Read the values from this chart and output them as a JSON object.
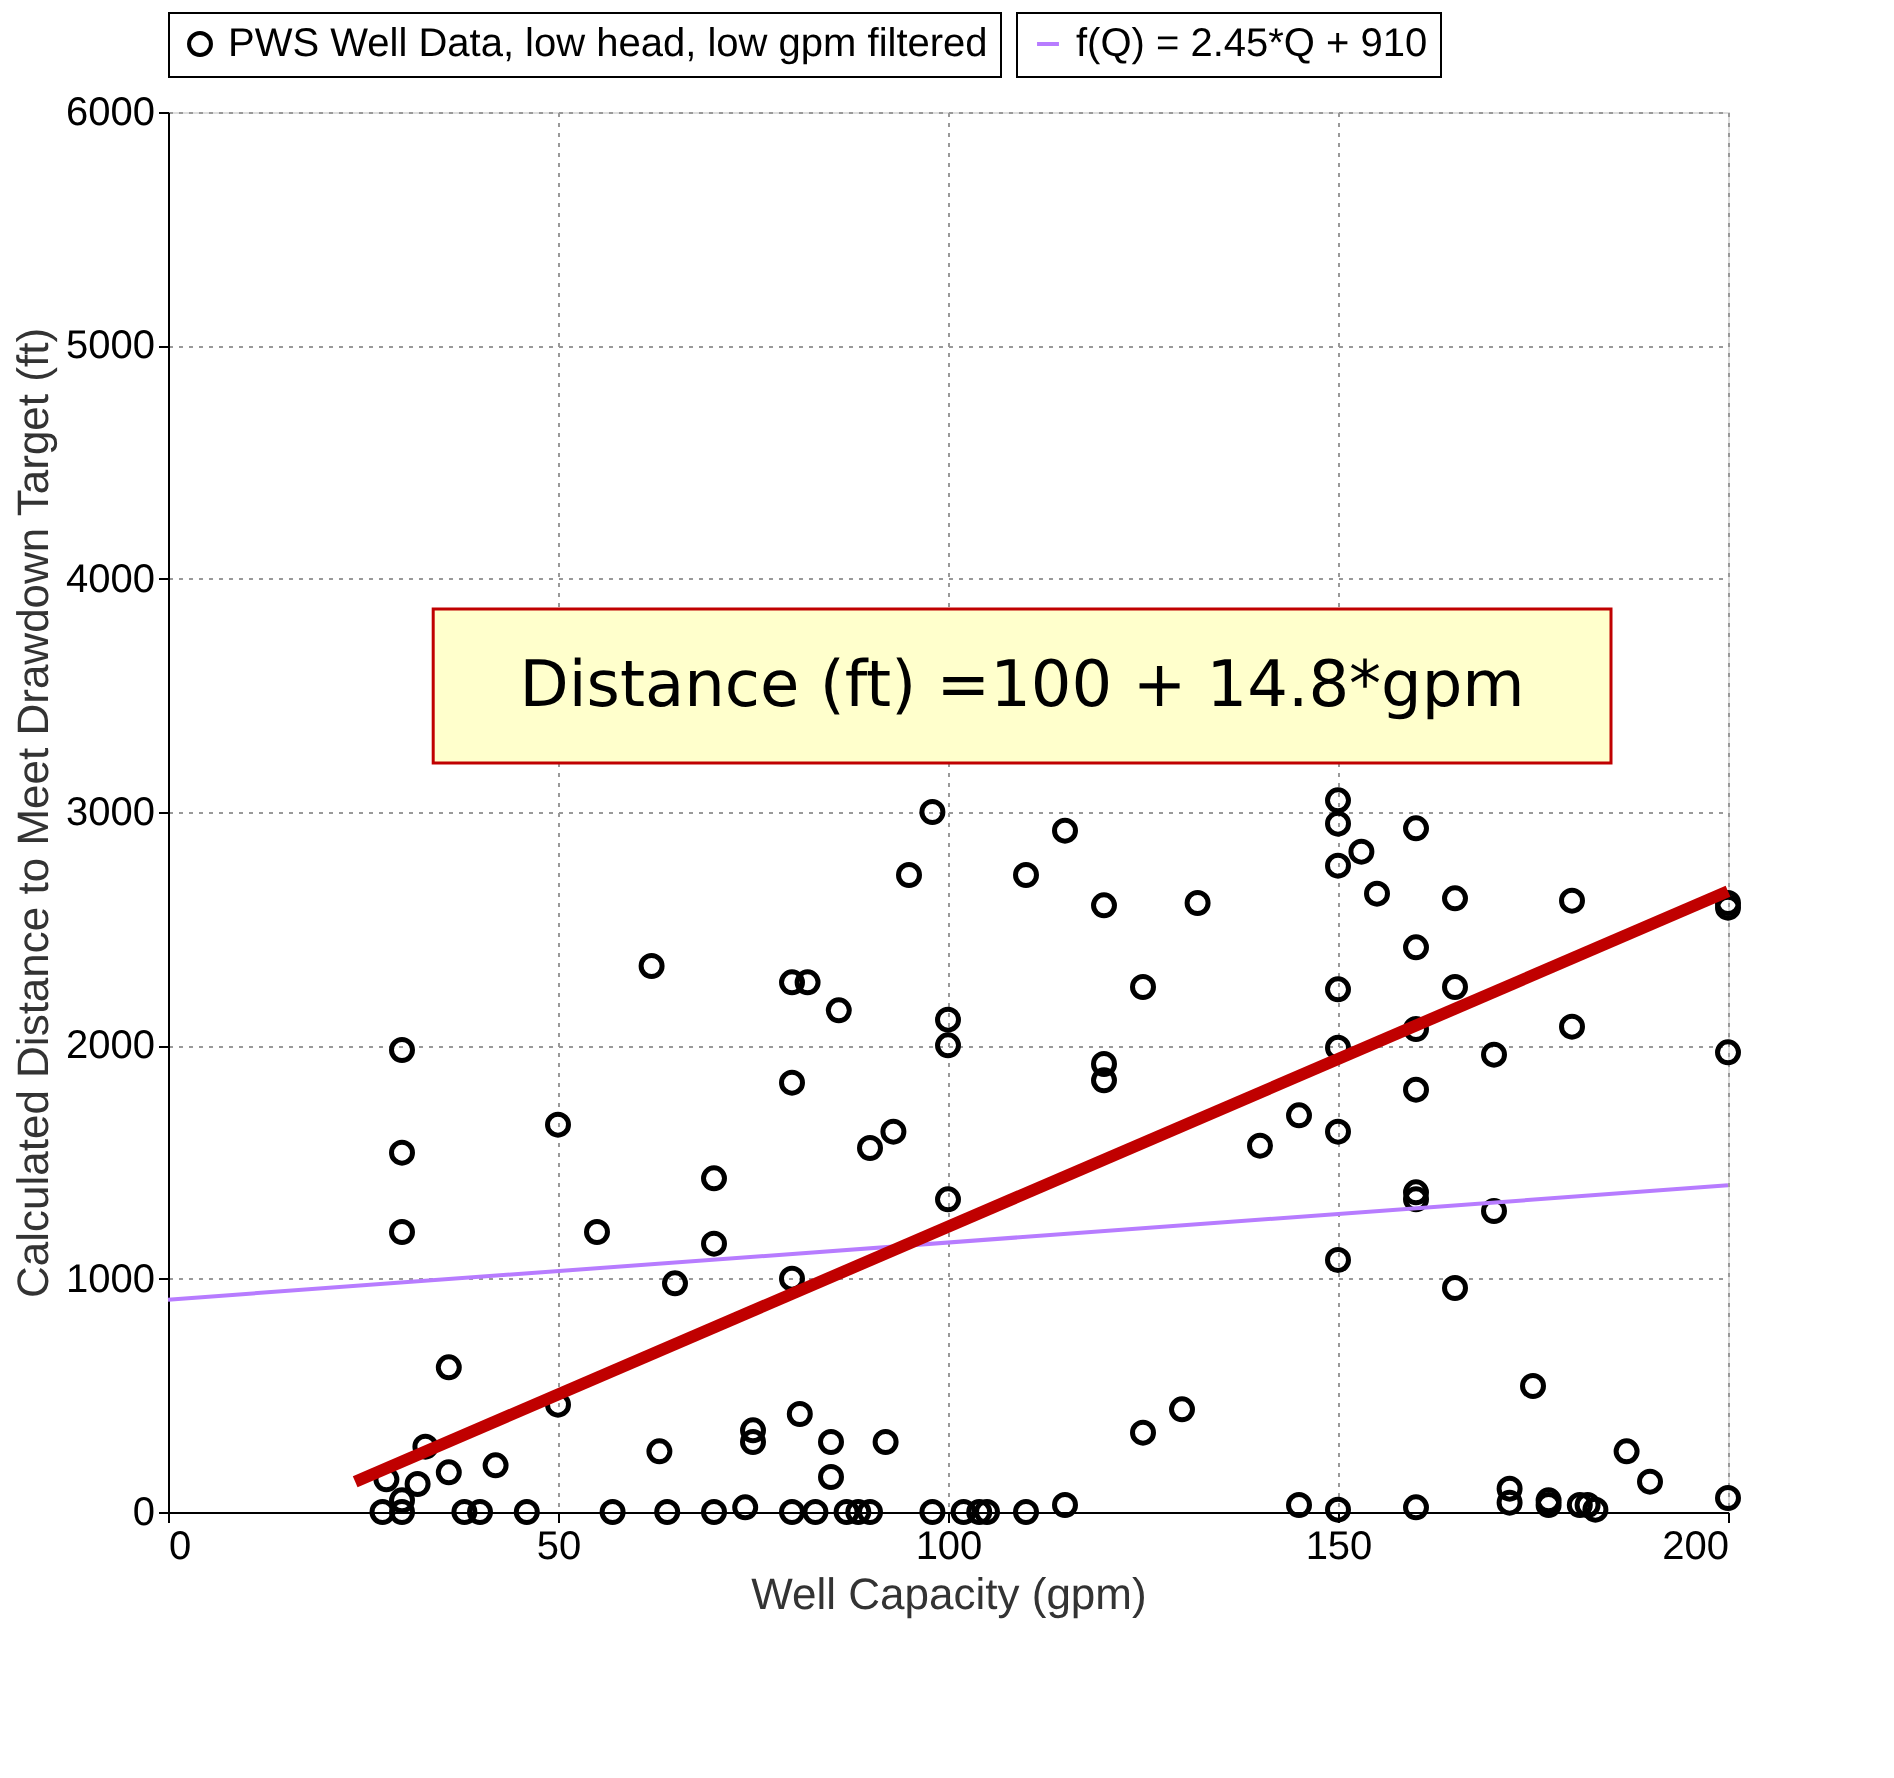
{
  "chart_data": {
    "type": "scatter",
    "xlabel": "Well Capacity (gpm)",
    "ylabel": "Calculated Distance to Meet Drawdown Target (ft)",
    "annotations": [
      "Distance (ft) =100 + 14.8*gpm"
    ],
    "xlim": [
      0,
      200
    ],
    "xticks": [
      0,
      50,
      100,
      150,
      200
    ],
    "ylim": [
      0,
      6000
    ],
    "yticks": [
      0,
      1000,
      2000,
      3000,
      4000,
      5000,
      6000
    ],
    "grid": true,
    "legend": "top",
    "series": [
      {
        "name": "PWS Well Data, low head, low gpm filtered",
        "color": "#000000",
        "marker": "circle",
        "x": [
          98,
          95,
          110,
          62,
          80,
          82,
          86,
          100,
          100,
          30,
          80,
          50,
          93,
          90,
          30,
          70,
          100,
          30,
          55,
          70,
          65,
          80,
          36,
          50,
          81,
          75,
          75,
          85,
          92,
          85,
          63,
          33,
          42,
          36,
          32,
          28,
          30,
          27.5,
          30,
          38,
          40,
          46,
          57,
          64,
          70,
          80,
          83,
          87,
          88.5,
          90,
          98,
          102,
          104,
          105,
          110,
          74,
          150,
          150,
          150,
          115,
          160,
          153,
          155,
          120,
          132,
          165,
          180,
          200,
          200,
          160,
          125,
          150,
          165,
          160,
          180,
          150,
          200,
          120,
          120,
          170,
          160,
          145,
          140,
          150,
          160,
          160,
          170,
          150,
          165,
          175,
          130,
          125,
          187,
          190,
          200,
          172,
          172,
          177,
          177,
          181,
          182,
          183,
          115,
          145,
          150,
          160
        ],
        "values": [
          3000,
          2730,
          2730,
          2340,
          2270,
          2270,
          2150,
          2110,
          2000,
          1980,
          1840,
          1660,
          1630,
          1560,
          1540,
          1430,
          1340,
          1200,
          1200,
          1150,
          980,
          1000,
          620,
          460,
          420,
          350,
          300,
          300,
          300,
          150,
          260,
          280,
          200,
          170,
          120,
          140,
          50,
          0,
          0,
          0,
          0,
          0,
          0,
          0,
          0,
          0,
          0,
          0,
          0,
          0,
          0,
          0,
          0,
          0,
          0,
          20,
          3050,
          2950,
          2770,
          2920,
          2930,
          2830,
          2650,
          2600,
          2610,
          2630,
          2620,
          2610,
          2590,
          2420,
          2250,
          2240,
          2250,
          2070,
          2080,
          1990,
          1970,
          1920,
          1850,
          1960,
          1810,
          1700,
          1570,
          1630,
          1370,
          1340,
          1290,
          1080,
          960,
          540,
          440,
          340,
          260,
          130,
          60,
          100,
          40,
          50,
          30,
          30,
          30,
          10,
          30,
          30,
          10,
          20
        ]
      },
      {
        "type": "line",
        "name": "f(Q) = 2.45*Q + 910",
        "color": "#b77cff",
        "line_style": "solid",
        "x": [
          0,
          200
        ],
        "values": [
          910,
          1400
        ]
      },
      {
        "type": "line",
        "color": "#c00000",
        "line_style": "solid",
        "x": [
          24,
          200
        ],
        "values": [
          130,
          2660
        ]
      }
    ]
  }
}
